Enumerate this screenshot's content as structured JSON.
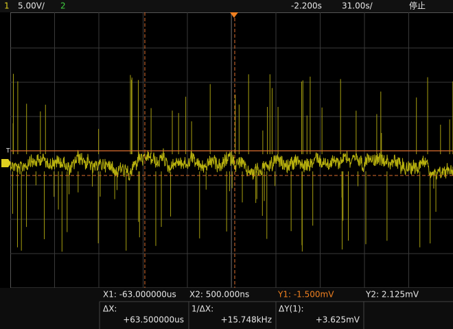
{
  "top_bar": {
    "channel1": "1",
    "scale1": "5.00V/",
    "channel2": "2",
    "delay": "-2.200s",
    "timebase": "31.00s/",
    "status": "停止"
  },
  "cursors": {
    "x1": "X1: -63.000000us",
    "x2": "X2: 500.000ns",
    "y1": "Y1: -1.500mV",
    "y2": "Y2: 2.125mV"
  },
  "measurements": [
    {
      "label": "ΔX:",
      "value": "+63.500000us"
    },
    {
      "label": "1/ΔX:",
      "value": "+15.748kHz"
    },
    {
      "label": "ΔY(1):",
      "value": "+3.625mV"
    }
  ]
}
